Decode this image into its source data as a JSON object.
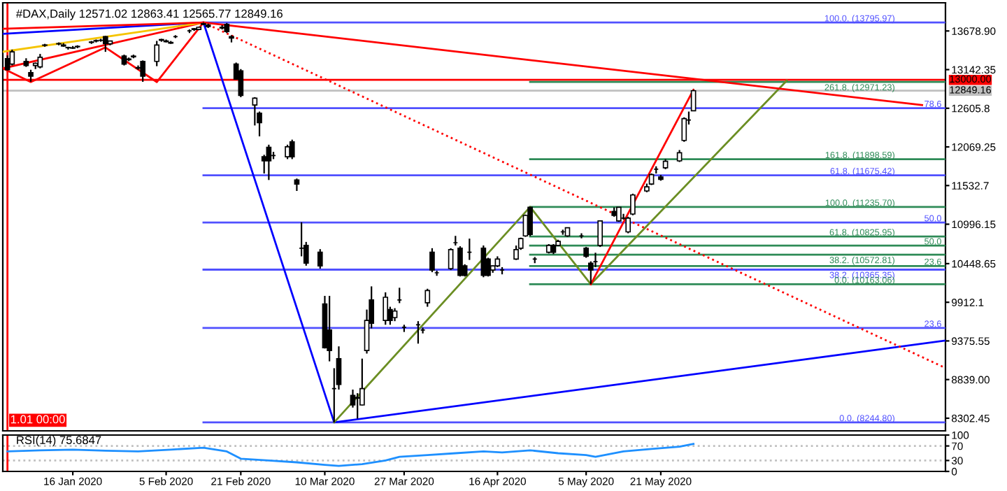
{
  "chart_data": [
    {
      "type": "candlestick",
      "title": "#DAX,Daily 12571.02 12863.41 12565.77 12849.16",
      "x": [
        "2020-01-02",
        "2020-01-03",
        "2020-01-06",
        "2020-01-07",
        "2020-01-08",
        "2020-01-09",
        "2020-01-10",
        "2020-01-13",
        "2020-01-14",
        "2020-01-15",
        "2020-01-16",
        "2020-01-17",
        "2020-01-20",
        "2020-01-21",
        "2020-01-22",
        "2020-01-23",
        "2020-01-24",
        "2020-01-27",
        "2020-01-28",
        "2020-01-29",
        "2020-01-30",
        "2020-01-31",
        "2020-02-03",
        "2020-02-04",
        "2020-02-05",
        "2020-02-06",
        "2020-02-07",
        "2020-02-10",
        "2020-02-11",
        "2020-02-12",
        "2020-02-13",
        "2020-02-14",
        "2020-02-17",
        "2020-02-18",
        "2020-02-19",
        "2020-02-20",
        "2020-02-21",
        "2020-02-24",
        "2020-02-25",
        "2020-02-26",
        "2020-02-27",
        "2020-02-28",
        "2020-03-02",
        "2020-03-03",
        "2020-03-04",
        "2020-03-05",
        "2020-03-06",
        "2020-03-09",
        "2020-03-10",
        "2020-03-11",
        "2020-03-12",
        "2020-03-13",
        "2020-03-16",
        "2020-03-17",
        "2020-03-18",
        "2020-03-19",
        "2020-03-20",
        "2020-03-23",
        "2020-03-24",
        "2020-03-25",
        "2020-03-26",
        "2020-03-27",
        "2020-03-30",
        "2020-03-31",
        "2020-04-01",
        "2020-04-02",
        "2020-04-03",
        "2020-04-06",
        "2020-04-07",
        "2020-04-08",
        "2020-04-09",
        "2020-04-10",
        "2020-04-13",
        "2020-04-14",
        "2020-04-15",
        "2020-04-16",
        "2020-04-17",
        "2020-04-20",
        "2020-04-21",
        "2020-04-22",
        "2020-04-23",
        "2020-04-24",
        "2020-04-27",
        "2020-04-28",
        "2020-04-29",
        "2020-04-30",
        "2020-05-01",
        "2020-05-04",
        "2020-05-05",
        "2020-05-06",
        "2020-05-07",
        "2020-05-08",
        "2020-05-11",
        "2020-05-12",
        "2020-05-13",
        "2020-05-14",
        "2020-05-15",
        "2020-05-18",
        "2020-05-19",
        "2020-05-20",
        "2020-05-21",
        "2020-05-22",
        "2020-05-25",
        "2020-05-26",
        "2020-05-27",
        "2020-05-28"
      ],
      "ohlc": [
        [
          13295,
          13340,
          13130,
          13140
        ],
        [
          13219,
          13420,
          13200,
          13389
        ],
        [
          13257,
          13300,
          13180,
          13200
        ],
        [
          13100,
          13140,
          12973,
          13050
        ],
        [
          13200,
          13240,
          13150,
          13230
        ],
        [
          13180,
          13360,
          13160,
          13314
        ],
        [
          13480,
          13500,
          13460,
          13484
        ],
        [
          13500,
          13520,
          13480,
          13503
        ],
        [
          13484,
          13510,
          13460,
          13470
        ],
        [
          13450,
          13460,
          13420,
          13446
        ],
        [
          13446,
          13470,
          13430,
          13440
        ],
        [
          13465,
          13480,
          13440,
          13460
        ],
        [
          13520,
          13540,
          13500,
          13525
        ],
        [
          13540,
          13560,
          13520,
          13545
        ],
        [
          13550,
          13570,
          13530,
          13550
        ],
        [
          13600,
          13610,
          13389,
          13503
        ],
        [
          13500,
          13540,
          13480,
          13540
        ],
        [
          13330,
          13350,
          13200,
          13219
        ],
        [
          13280,
          13310,
          13260,
          13290
        ],
        [
          13330,
          13350,
          13300,
          13320
        ],
        [
          13170,
          13200,
          13140,
          13162
        ],
        [
          13257,
          13270,
          12973,
          13050
        ],
        [
          13257,
          13541,
          13190,
          13484
        ],
        [
          13550,
          13570,
          13530,
          13560
        ],
        [
          13540,
          13560,
          13520,
          13530
        ],
        [
          13520,
          13540,
          13500,
          13510
        ],
        [
          13600,
          13620,
          13580,
          13600
        ],
        [
          13680,
          13700,
          13650,
          13680
        ],
        [
          13700,
          13720,
          13680,
          13710
        ],
        [
          13700,
          13740,
          13690,
          13730
        ],
        [
          13780,
          13795.97,
          13760,
          13770
        ],
        [
          13760,
          13780,
          13720,
          13740
        ],
        [
          13730,
          13760,
          13700,
          13720
        ],
        [
          13770,
          13790,
          13650,
          13670
        ],
        [
          13600,
          13620,
          13520,
          13580
        ],
        [
          13219,
          13240,
          13000,
          13011
        ],
        [
          13124,
          13150,
          12760,
          12784
        ],
        [
          12651,
          12760,
          12367,
          12746
        ],
        [
          12537,
          12560,
          12216,
          12405
        ],
        [
          11932,
          11960,
          11700,
          11875
        ],
        [
          12065,
          12100,
          11610,
          11875
        ],
        [
          11950,
          12000,
          11900,
          11950
        ],
        [
          11932,
          12100,
          11900,
          12070
        ],
        [
          12140,
          12170,
          11900,
          11932
        ],
        [
          11610,
          11630,
          11458,
          11553
        ],
        [
          10663,
          11023,
          10550,
          10663
        ],
        [
          10701,
          10750,
          10420,
          10455
        ],
        [
          10607,
          10650,
          10380,
          10417
        ],
        [
          9888,
          10001,
          9270,
          9281
        ],
        [
          9527,
          10001,
          9092,
          9243
        ],
        [
          8714,
          8997,
          8244.8,
          8714
        ],
        [
          9130,
          9300,
          8700,
          8770
        ],
        [
          8618,
          8700,
          8450,
          8486
        ],
        [
          8581,
          8650,
          8297,
          8590
        ],
        [
          8486,
          9130,
          8480,
          8714
        ],
        [
          9243,
          9811,
          9200,
          9660
        ],
        [
          9944,
          10133,
          9550,
          9622
        ],
        [
          9660,
          10050,
          9600,
          9982
        ],
        [
          9811,
          9850,
          9600,
          9660
        ],
        [
          9700,
          9830,
          9650,
          9790
        ],
        [
          9944,
          10114,
          9900,
          9944
        ],
        [
          9565,
          9600,
          9500,
          9565
        ],
        [
          9600,
          9650,
          9338,
          9600
        ],
        [
          9527,
          9560,
          9480,
          9527
        ],
        [
          9906,
          10100,
          9850,
          10076
        ],
        [
          10607,
          10663,
          10330,
          10360
        ],
        [
          10322,
          10350,
          10280,
          10322
        ],
        [
          10380,
          10663,
          10360,
          10644
        ],
        [
          10739,
          10834,
          10700,
          10739
        ],
        [
          10663,
          10690,
          10270,
          10285
        ],
        [
          10417,
          10440,
          10270,
          10285
        ],
        [
          10607,
          10796,
          10500,
          10607
        ],
        [
          10663,
          10701,
          10260,
          10285
        ],
        [
          10512,
          10530,
          10270,
          10285
        ],
        [
          10360,
          10420,
          10322,
          10417
        ],
        [
          10417,
          10550,
          10400,
          10512
        ],
        [
          10360,
          10400,
          10300,
          10360
        ],
        [
          10512,
          10700,
          10500,
          10644
        ],
        [
          10663,
          10810,
          10640,
          10796
        ],
        [
          10834,
          11130,
          10820,
          11118
        ],
        [
          11231,
          11235.7,
          10830,
          10853
        ],
        [
          10512,
          10540,
          10455,
          10512
        ],
        [
          10607,
          10720,
          10590,
          10701
        ],
        [
          10701,
          10720,
          10580,
          10607
        ],
        [
          10701,
          10780,
          10690,
          10758
        ],
        [
          10890,
          10920,
          10850,
          10890
        ],
        [
          10834,
          10950,
          10820,
          10947
        ],
        [
          10834,
          10870,
          10800,
          10834
        ],
        [
          10663,
          10680,
          10530,
          10550
        ],
        [
          10455,
          10480,
          10163.06,
          10360
        ],
        [
          10475,
          10600,
          10400,
          10475
        ],
        [
          10701,
          11042,
          10680,
          11042
        ],
        [
          11174,
          11230,
          11100,
          11118
        ],
        [
          11042,
          11234,
          11030,
          11231
        ],
        [
          11080,
          11140,
          11060,
          11080
        ],
        [
          10890,
          11100,
          10870,
          11080
        ],
        [
          11137,
          11420,
          11120,
          11402
        ],
        [
          11458,
          11560,
          11440,
          11515
        ],
        [
          11553,
          11700,
          11540,
          11685
        ],
        [
          11760,
          11800,
          11700,
          11760
        ],
        [
          11650,
          11680,
          11600,
          11620
        ],
        [
          11780,
          11900,
          11760,
          11870
        ],
        [
          11875,
          12026,
          11860,
          11988
        ],
        [
          12159,
          12480,
          12140,
          12462
        ],
        [
          12443,
          12560,
          12380,
          12443
        ],
        [
          12571.02,
          12863.41,
          12565.77,
          12849.16
        ]
      ],
      "series": [
        {
          "type": "line",
          "name": "100.0. (13795.97)",
          "color": "#5050ff",
          "x": [
            "2020-02-13",
            "2020-07-21"
          ],
          "values": [
            13795.97,
            13795.97
          ]
        },
        {
          "type": "line",
          "name": "78.6",
          "color": "#5050ff",
          "x": [
            "2020-02-13",
            "2020-07-21"
          ],
          "values": [
            12608,
            12608
          ]
        },
        {
          "type": "line",
          "name": "61.8. (11675.42)",
          "color": "#5050ff",
          "x": [
            "2020-02-13",
            "2020-07-21"
          ],
          "values": [
            11675.42,
            11675.42
          ]
        },
        {
          "type": "line",
          "name": "50.0",
          "color": "#5050ff",
          "x": [
            "2020-02-13",
            "2020-07-21"
          ],
          "values": [
            11020,
            11020
          ]
        },
        {
          "type": "line",
          "name": "38.2. (10365.35)",
          "color": "#5050ff",
          "x": [
            "2020-02-13",
            "2020-07-21"
          ],
          "values": [
            10365.35,
            10365.35
          ]
        },
        {
          "type": "line",
          "name": "23.6",
          "color": "#5050ff",
          "x": [
            "2020-02-13",
            "2020-07-21"
          ],
          "values": [
            9555,
            9555
          ]
        },
        {
          "type": "line",
          "name": "0.0. (8244.80)",
          "color": "#5050ff",
          "x": [
            "2020-02-13",
            "2020-07-21"
          ],
          "values": [
            8244.8,
            8244.8
          ]
        },
        {
          "type": "line",
          "name": "261.8. (12971.23)",
          "color": "#2e8b57",
          "x": [
            "2020-04-23",
            "2020-07-21"
          ],
          "values": [
            12971.23,
            12971.23
          ]
        },
        {
          "type": "line",
          "name": "161.8. (11898.59)",
          "color": "#2e8b57",
          "x": [
            "2020-04-23",
            "2020-07-21"
          ],
          "values": [
            11898.59,
            11898.59
          ]
        },
        {
          "type": "line",
          "name": "100.0. (11235.70)",
          "color": "#2e8b57",
          "x": [
            "2020-04-23",
            "2020-07-21"
          ],
          "values": [
            11235.7,
            11235.7
          ]
        },
        {
          "type": "line",
          "name": "61.8. (10825.95)",
          "color": "#2e8b57",
          "x": [
            "2020-04-23",
            "2020-07-21"
          ],
          "values": [
            10825.95,
            10825.95
          ]
        },
        {
          "type": "line",
          "name": "50.0",
          "color": "#2e8b57",
          "x": [
            "2020-04-23",
            "2020-07-21"
          ],
          "values": [
            10699,
            10699
          ]
        },
        {
          "type": "line",
          "name": "38.2. (10572.81)",
          "color": "#2e8b57",
          "x": [
            "2020-04-23",
            "2020-07-21"
          ],
          "values": [
            10572.81,
            10572.81
          ]
        },
        {
          "type": "line",
          "name": "23.6",
          "color": "#2e8b57",
          "x": [
            "2020-04-23",
            "2020-07-21"
          ],
          "values": [
            10416,
            10416
          ]
        },
        {
          "type": "line",
          "name": "0.0. (10163.06)",
          "color": "#2e8b57",
          "x": [
            "2020-04-23",
            "2020-07-21"
          ],
          "values": [
            10163.06,
            10163.06
          ]
        },
        {
          "type": "line",
          "color": "#0000ff",
          "x": [
            "2020-01-01",
            "2020-02-13",
            "2020-03-12",
            "2020-07-21"
          ],
          "values": [
            13640,
            13796,
            8245,
            9380
          ]
        },
        {
          "type": "line",
          "color": "#6b8e23",
          "x": [
            "2020-03-12",
            "2020-04-23",
            "2020-05-06",
            "2020-06-17"
          ],
          "values": [
            8245,
            11236,
            10163,
            12990
          ]
        },
        {
          "type": "line",
          "color": "#ff0000",
          "x": [
            "2020-05-06",
            "2020-05-28"
          ],
          "values": [
            10163,
            12863
          ]
        },
        {
          "type": "line",
          "color": "#ff0000",
          "line_style": "dotted",
          "x": [
            "2020-02-13",
            "2020-07-21"
          ],
          "values": [
            13796,
            9000
          ]
        },
        {
          "type": "line",
          "color": "#ff0000",
          "x": [
            "2020-01-01",
            "2020-02-13",
            "2020-07-16"
          ],
          "values": [
            13160,
            13796,
            12650
          ]
        },
        {
          "type": "line",
          "color": "#f5c400",
          "x": [
            "2020-01-01",
            "2020-02-13"
          ],
          "values": [
            13390,
            13796
          ]
        },
        {
          "type": "line",
          "color": "#ff0000",
          "x": [
            "2020-01-01",
            "2020-02-13"
          ],
          "values": [
            13710,
            13796
          ]
        },
        {
          "type": "line",
          "color": "#ff0000",
          "x": [
            "2020-01-01",
            "2020-01-07",
            "2020-01-23",
            "2020-02-03",
            "2020-02-13"
          ],
          "values": [
            13160,
            12970,
            13450,
            12970,
            13796
          ]
        }
      ],
      "ref_lines": [
        {
          "axis": "y",
          "value": 13000.0,
          "label": "13000.00",
          "color": "#ff0000"
        },
        {
          "axis": "y",
          "value": 12849.16,
          "label": "12849.16",
          "color": "#c0c0c0"
        },
        {
          "axis": "x",
          "value": "2020-01-02",
          "label": "1.01 00:00",
          "color": "#ff0000"
        }
      ],
      "xlim": [
        "2020-01-01",
        "2020-07-21"
      ],
      "ylim": [
        8127,
        14070
      ],
      "yticks": [
        {
          "value": 13678.9,
          "label": "13678.90"
        },
        13142.35,
        12605.8,
        12069.25,
        11532.7,
        10996.15,
        10448.65,
        9912.1,
        9375.55,
        {
          "value": 8839.0,
          "label": "8839.00"
        },
        8302.45
      ],
      "tick_labels": "y",
      "grid": false,
      "legend": false
    },
    {
      "type": "line",
      "title": "RSI(14) 75.6847",
      "series": [
        {
          "color": "#1e90ff",
          "x": [
            "2020-01-02",
            "2020-01-09",
            "2020-01-16",
            "2020-01-23",
            "2020-01-30",
            "2020-02-06",
            "2020-02-13",
            "2020-02-18",
            "2020-02-21",
            "2020-02-27",
            "2020-03-04",
            "2020-03-10",
            "2020-03-13",
            "2020-03-18",
            "2020-03-23",
            "2020-03-26",
            "2020-04-01",
            "2020-04-07",
            "2020-04-13",
            "2020-04-17",
            "2020-04-23",
            "2020-04-29",
            "2020-05-05",
            "2020-05-07",
            "2020-05-13",
            "2020-05-19",
            "2020-05-25",
            "2020-05-28"
          ],
          "values": [
            55,
            58,
            60,
            57,
            55,
            60,
            65,
            55,
            35,
            30,
            25,
            18,
            15,
            20,
            30,
            40,
            45,
            50,
            55,
            52,
            58,
            50,
            45,
            40,
            55,
            62,
            68,
            75.7
          ]
        }
      ],
      "ref_lines": [
        {
          "axis": "y",
          "value": 70,
          "color": "#c0c0c0",
          "line_style": "dotted"
        },
        {
          "axis": "y",
          "value": 30,
          "color": "#c0c0c0",
          "line_style": "dotted"
        },
        {
          "axis": "x",
          "value": "2020-01-02",
          "color": "#ff0000"
        }
      ],
      "xlim": [
        "2020-01-01",
        "2020-07-21"
      ],
      "ylim": [
        0,
        100
      ],
      "yticks": [
        0,
        30,
        70,
        100
      ],
      "xticks": [
        {
          "value": "2020-01-16",
          "label": "16 Jan 2020"
        },
        {
          "value": "2020-02-05",
          "label": "5 Feb 2020"
        },
        {
          "value": "2020-02-21",
          "label": "21 Feb 2020"
        },
        {
          "value": "2020-03-10",
          "label": "10 Mar 2020"
        },
        {
          "value": "2020-03-27",
          "label": "27 Mar 2020"
        },
        {
          "value": "2020-04-16",
          "label": "16 Apr 2020"
        },
        {
          "value": "2020-05-05",
          "label": "5 May 2020"
        },
        {
          "value": "2020-05-21",
          "label": "21 May 2020"
        }
      ],
      "grid": false,
      "legend": false
    }
  ]
}
